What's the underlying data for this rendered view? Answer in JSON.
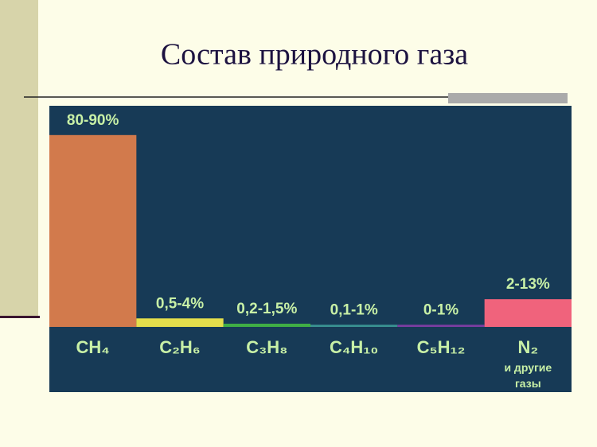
{
  "chart_data": {
    "type": "range-bar",
    "title": "Состав природного газа",
    "categories": [
      "CH₄",
      "C₂H₆",
      "C₃H₈",
      "C₄H₁₀",
      "C₅H₁₂",
      "N₂"
    ],
    "category_note": "и другие газы",
    "series": [
      {
        "low": [
          80,
          0.5,
          0.2,
          0.1,
          0,
          2
        ],
        "high": [
          90,
          4,
          1.5,
          1,
          1,
          13
        ],
        "value_labels": [
          "80-90%",
          "0,5-4%",
          "0,2-1,5%",
          "0,1-1%",
          "0-1%",
          "2-13%"
        ],
        "colors": [
          "#d27a4c",
          "#e4de4c",
          "#3fae45",
          "#3a9292",
          "#7d3da2",
          "#f0637c"
        ]
      }
    ],
    "ylim": [
      0,
      100
    ]
  }
}
